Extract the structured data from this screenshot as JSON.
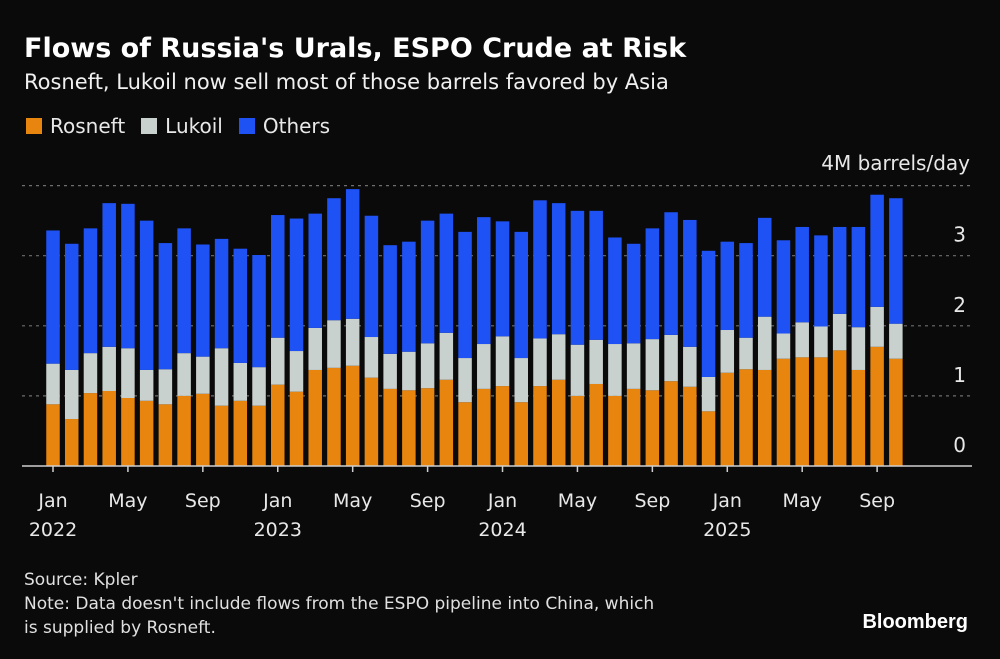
{
  "chart_data": {
    "type": "bar",
    "stacked": true,
    "title": "Flows of Russia's Urals, ESPO Crude at Risk",
    "subtitle": "Rosneft, Lukoil now sell most of those barrels favored by Asia",
    "ylabel": "4M barrels/day",
    "xlabel": "",
    "ylim": [
      0,
      4
    ],
    "yticks": [
      0,
      1,
      2,
      3,
      4
    ],
    "ytick_labels": [
      "0",
      "1",
      "2",
      "3",
      "4M barrels/day"
    ],
    "grid": true,
    "legend_position": "top-left",
    "x_tick_labels": [
      {
        "month": "Jan",
        "year": "2022",
        "index": 0
      },
      {
        "month": "May",
        "year": "",
        "index": 4
      },
      {
        "month": "Sep",
        "year": "",
        "index": 8
      },
      {
        "month": "Jan",
        "year": "2023",
        "index": 12
      },
      {
        "month": "May",
        "year": "",
        "index": 16
      },
      {
        "month": "Sep",
        "year": "",
        "index": 20
      },
      {
        "month": "Jan",
        "year": "2024",
        "index": 24
      },
      {
        "month": "May",
        "year": "",
        "index": 28
      },
      {
        "month": "Sep",
        "year": "",
        "index": 32
      },
      {
        "month": "Jan",
        "year": "2025",
        "index": 36
      },
      {
        "month": "May",
        "year": "",
        "index": 40
      },
      {
        "month": "Sep",
        "year": "",
        "index": 44
      }
    ],
    "categories": [
      "2022-01",
      "2022-02",
      "2022-03",
      "2022-04",
      "2022-05",
      "2022-06",
      "2022-07",
      "2022-08",
      "2022-09",
      "2022-10",
      "2022-11",
      "2022-12",
      "2023-01",
      "2023-02",
      "2023-03",
      "2023-04",
      "2023-05",
      "2023-06",
      "2023-07",
      "2023-08",
      "2023-09",
      "2023-10",
      "2023-11",
      "2023-12",
      "2024-01",
      "2024-02",
      "2024-03",
      "2024-04",
      "2024-05",
      "2024-06",
      "2024-07",
      "2024-08",
      "2024-09",
      "2024-10",
      "2024-11",
      "2024-12",
      "2025-01",
      "2025-02",
      "2025-03",
      "2025-04",
      "2025-05",
      "2025-06",
      "2025-07",
      "2025-08",
      "2025-09",
      "2025-10"
    ],
    "series": [
      {
        "name": "Rosneft",
        "color": "#e8850f",
        "values": [
          0.88,
          0.67,
          1.04,
          1.07,
          0.97,
          0.93,
          0.88,
          1.0,
          1.03,
          0.86,
          0.93,
          0.86,
          1.16,
          1.06,
          1.37,
          1.4,
          1.43,
          1.26,
          1.1,
          1.08,
          1.11,
          1.23,
          0.91,
          1.1,
          1.14,
          0.91,
          1.14,
          1.23,
          1.0,
          1.17,
          1.0,
          1.1,
          1.08,
          1.21,
          1.13,
          0.78,
          1.33,
          1.38,
          1.37,
          1.53,
          1.55,
          1.55,
          1.65,
          1.37,
          1.7,
          1.53
        ]
      },
      {
        "name": "Lukoil",
        "color": "#c9d1cf",
        "values": [
          0.58,
          0.7,
          0.57,
          0.63,
          0.71,
          0.44,
          0.5,
          0.61,
          0.53,
          0.82,
          0.54,
          0.55,
          0.67,
          0.58,
          0.6,
          0.68,
          0.67,
          0.58,
          0.5,
          0.55,
          0.64,
          0.67,
          0.63,
          0.64,
          0.71,
          0.63,
          0.68,
          0.65,
          0.73,
          0.63,
          0.74,
          0.65,
          0.73,
          0.66,
          0.57,
          0.49,
          0.61,
          0.45,
          0.76,
          0.36,
          0.5,
          0.44,
          0.52,
          0.61,
          0.57,
          0.5
        ]
      },
      {
        "name": "Others",
        "color": "#1f52f5",
        "values": [
          1.9,
          1.8,
          1.78,
          2.05,
          2.06,
          2.13,
          1.8,
          1.78,
          1.6,
          1.56,
          1.63,
          1.6,
          1.75,
          1.89,
          1.63,
          1.74,
          1.85,
          1.73,
          1.55,
          1.57,
          1.75,
          1.7,
          1.8,
          1.81,
          1.64,
          1.8,
          1.97,
          1.87,
          1.91,
          1.84,
          1.52,
          1.42,
          1.58,
          1.75,
          1.81,
          1.8,
          1.26,
          1.35,
          1.41,
          1.33,
          1.36,
          1.3,
          1.24,
          1.43,
          1.6,
          1.79
        ]
      }
    ]
  },
  "footer": {
    "source": "Source: Kpler",
    "note_line1": "Note: Data doesn't include flows from the ESPO pipeline into China, which",
    "note_line2": "is supplied by Rosneft.",
    "brand": "Bloomberg"
  }
}
